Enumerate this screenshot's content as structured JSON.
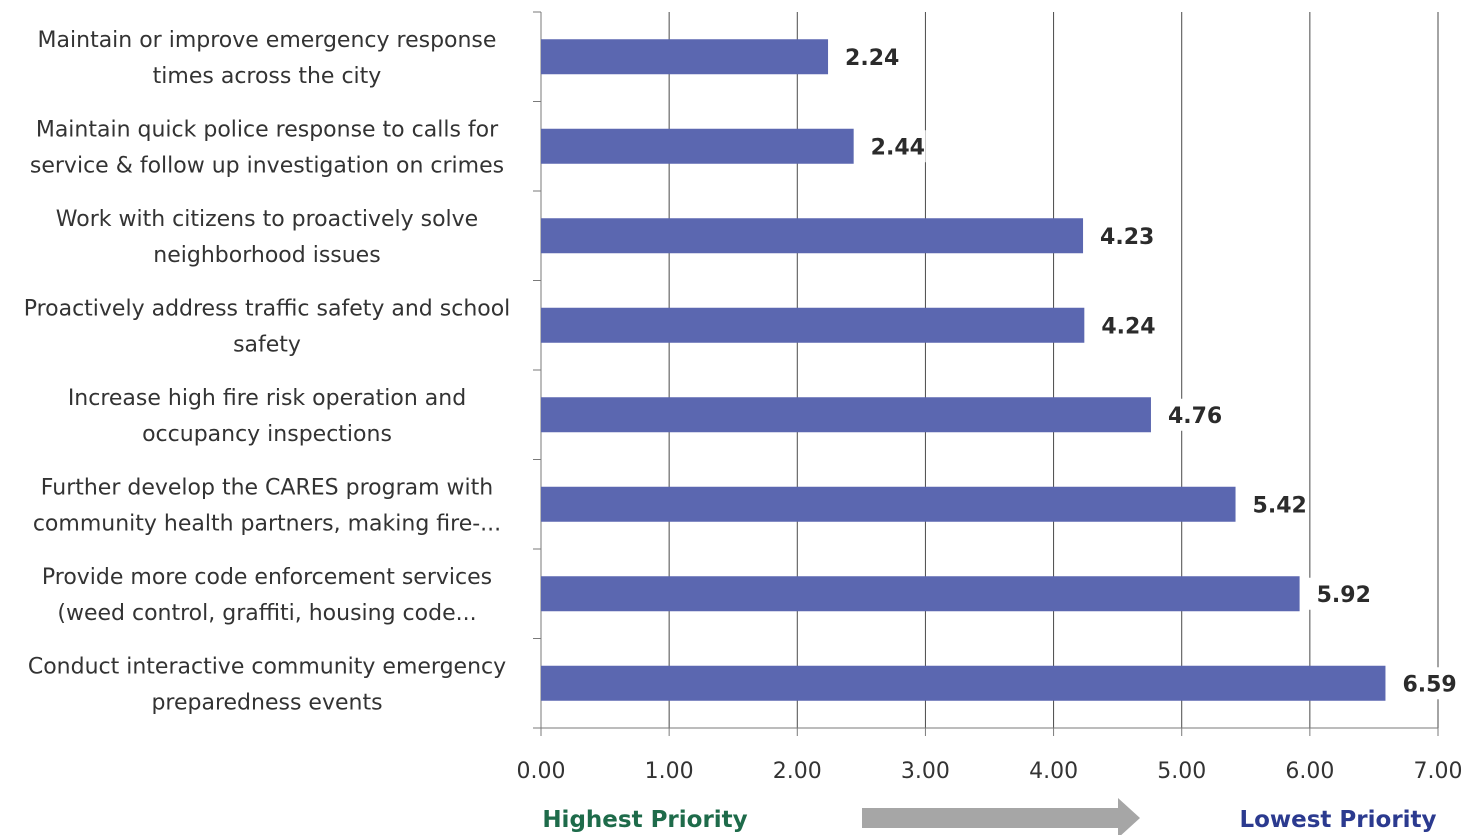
{
  "chart_data": {
    "type": "bar",
    "orientation": "horizontal",
    "categories": [
      [
        "Maintain or improve emergency response",
        "times across the city"
      ],
      [
        "Maintain quick police response to calls for",
        "service & follow up investigation on crimes"
      ],
      [
        "Work with citizens to proactively solve",
        "neighborhood issues"
      ],
      [
        "Proactively address traffic safety and school",
        "safety"
      ],
      [
        "Increase high fire risk operation and",
        "occupancy inspections"
      ],
      [
        "Further develop the CARES program with",
        "community health partners, making fire-..."
      ],
      [
        "Provide more code enforcement services",
        "(weed control, graffiti, housing code..."
      ],
      [
        "Conduct interactive community emergency",
        "preparedness events"
      ]
    ],
    "values": [
      2.24,
      2.44,
      4.23,
      4.24,
      4.76,
      5.42,
      5.92,
      6.59
    ],
    "value_labels": [
      "2.24",
      "2.44",
      "4.23",
      "4.24",
      "4.76",
      "5.42",
      "5.92",
      "6.59"
    ],
    "xlim": [
      0,
      7
    ],
    "x_ticks": [
      0,
      1,
      2,
      3,
      4,
      5,
      6,
      7
    ],
    "x_tick_labels": [
      "0.00",
      "1.00",
      "2.00",
      "3.00",
      "4.00",
      "5.00",
      "6.00",
      "7.00"
    ],
    "grid": "vertical",
    "legend": "none",
    "bar_color": "#5B67B0",
    "title": "",
    "xlabel": "",
    "ylabel": ""
  },
  "footer": {
    "left_label": "Highest Priority",
    "left_color": "#1E6B4A",
    "right_label": "Lowest Priority",
    "right_color": "#2B3A8F",
    "arrow_color": "#A6A6A6"
  }
}
